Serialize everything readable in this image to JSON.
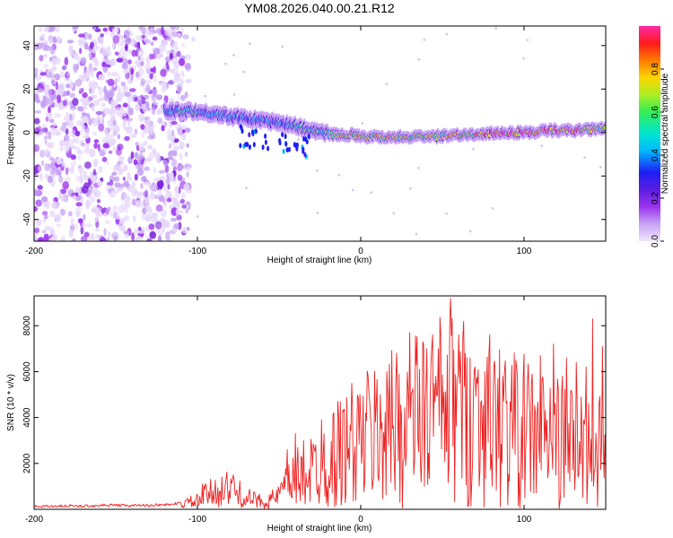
{
  "figure_title": "YM08.2026.040.00.21.R12",
  "colors": {
    "axis": "#000000",
    "snr_line": "#ee2222",
    "spectrogram_noise": "#9a33ee",
    "colormap_stops": [
      "#efe6fb",
      "#c9a4f5",
      "#9a33ee",
      "#5a1ee0",
      "#1e1ef5",
      "#00b8ff",
      "#00e5d0",
      "#33ee55",
      "#a8ee22",
      "#ffd400",
      "#ff7a00",
      "#ff1a1a",
      "#ff2aa8"
    ]
  },
  "chart_data": [
    {
      "type": "heatmap",
      "title": "YM08.2026.040.00.21.R12",
      "xlabel": "Height of straight line (km)",
      "ylabel": "Frequency (Hz)",
      "xlim": [
        -200,
        150
      ],
      "ylim": [
        -50,
        49
      ],
      "x_ticks": [
        -200,
        -100,
        0,
        100
      ],
      "x_tick_labels": [
        "-200",
        "-100",
        "0",
        "100"
      ],
      "y_ticks": [
        -40,
        -20,
        0,
        20,
        40
      ],
      "y_tick_labels": [
        "-40",
        "-20",
        "0",
        "20",
        "40"
      ],
      "colorbar": {
        "label": "Normalized spectral amplitude",
        "range": [
          0,
          1
        ],
        "ticks": [
          0.0,
          0.2,
          0.4,
          0.6,
          0.8
        ],
        "tick_labels": [
          "0.0",
          "0.2",
          "0.4",
          "0.6",
          "0.8"
        ]
      },
      "noise_region_x": [
        -200,
        -105
      ],
      "signal_ridge": {
        "x": [
          -120,
          -105,
          -95,
          -85,
          -75,
          -65,
          -55,
          -45,
          -35,
          -25,
          -15,
          -5,
          5,
          15,
          25,
          35,
          45,
          55,
          65,
          75,
          85,
          95,
          105,
          115,
          125,
          135,
          150
        ],
        "freq": [
          10,
          10,
          9,
          8,
          7,
          6,
          5,
          4,
          2,
          0,
          -1,
          -1,
          -2,
          -2,
          -2,
          -2,
          -2,
          -1,
          -1,
          -1,
          0,
          0,
          0,
          1,
          1,
          1,
          2
        ],
        "amplitude": [
          0.45,
          0.55,
          0.5,
          0.5,
          0.45,
          0.45,
          0.45,
          0.5,
          0.55,
          0.6,
          0.7,
          0.75,
          0.75,
          0.7,
          0.7,
          0.7,
          0.7,
          0.7,
          0.75,
          0.8,
          0.85,
          0.9,
          0.9,
          0.9,
          0.85,
          0.8,
          0.7
        ]
      }
    },
    {
      "type": "line",
      "xlabel": "Height of straight line (km)",
      "ylabel": "SNR (10 * v/v)",
      "xlim": [
        -200,
        150
      ],
      "ylim": [
        0,
        9300
      ],
      "x_ticks": [
        -200,
        -100,
        0,
        100
      ],
      "x_tick_labels": [
        "-200",
        "-100",
        "0",
        "100"
      ],
      "y_ticks": [
        2000,
        4000,
        6000,
        8000
      ],
      "y_tick_labels": [
        "2000",
        "4000",
        "6000",
        "8000"
      ],
      "series": [
        {
          "name": "SNR",
          "x": [
            -200,
            -190,
            -180,
            -170,
            -160,
            -150,
            -140,
            -130,
            -120,
            -110,
            -105,
            -100,
            -95,
            -90,
            -85,
            -80,
            -75,
            -70,
            -65,
            -60,
            -55,
            -50,
            -45,
            -40,
            -35,
            -30,
            -25,
            -20,
            -15,
            -10,
            -5,
            0,
            5,
            10,
            15,
            20,
            25,
            30,
            35,
            40,
            45,
            50,
            55,
            60,
            65,
            70,
            75,
            80,
            85,
            90,
            95,
            100,
            105,
            110,
            115,
            120,
            125,
            130,
            135,
            140,
            145,
            150
          ],
          "y": [
            100,
            120,
            130,
            120,
            150,
            160,
            140,
            160,
            180,
            250,
            300,
            350,
            600,
            750,
            900,
            850,
            700,
            500,
            400,
            350,
            400,
            600,
            1000,
            1300,
            1500,
            1700,
            1900,
            2100,
            2300,
            2600,
            2800,
            3000,
            3200,
            3300,
            3400,
            3500,
            3600,
            3800,
            4000,
            4100,
            4200,
            4300,
            4400,
            4300,
            4200,
            4100,
            4000,
            3900,
            3700,
            3600,
            3500,
            3400,
            3300,
            3200,
            3100,
            3000,
            2900,
            2800,
            2700,
            2600,
            2500,
            2400
          ],
          "spikes": [
            {
              "x": -97,
              "y": 1100
            },
            {
              "x": -78,
              "y": 1500
            },
            {
              "x": -45,
              "y": 2600
            },
            {
              "x": -40,
              "y": 3300
            },
            {
              "x": -35,
              "y": 3000
            },
            {
              "x": -24,
              "y": 3900
            },
            {
              "x": -14,
              "y": 4700
            },
            {
              "x": -5,
              "y": 4300
            },
            {
              "x": 12,
              "y": 5000
            },
            {
              "x": 16,
              "y": 6000
            },
            {
              "x": 22,
              "y": 6800
            },
            {
              "x": 30,
              "y": 7700
            },
            {
              "x": 34,
              "y": 6300
            },
            {
              "x": 38,
              "y": 7300
            },
            {
              "x": 44,
              "y": 7600
            },
            {
              "x": 49,
              "y": 7600
            },
            {
              "x": 55,
              "y": 9200
            },
            {
              "x": 60,
              "y": 7600
            },
            {
              "x": 64,
              "y": 6800
            },
            {
              "x": 70,
              "y": 6200
            },
            {
              "x": 76,
              "y": 6000
            },
            {
              "x": 84,
              "y": 5700
            },
            {
              "x": 88,
              "y": 6000
            },
            {
              "x": 95,
              "y": 6500
            },
            {
              "x": 110,
              "y": 6700
            },
            {
              "x": 118,
              "y": 7200
            },
            {
              "x": 126,
              "y": 6600
            },
            {
              "x": 132,
              "y": 6400
            },
            {
              "x": 138,
              "y": 6200
            },
            {
              "x": 142,
              "y": 8300
            },
            {
              "x": 148,
              "y": 7100
            }
          ]
        }
      ]
    }
  ]
}
